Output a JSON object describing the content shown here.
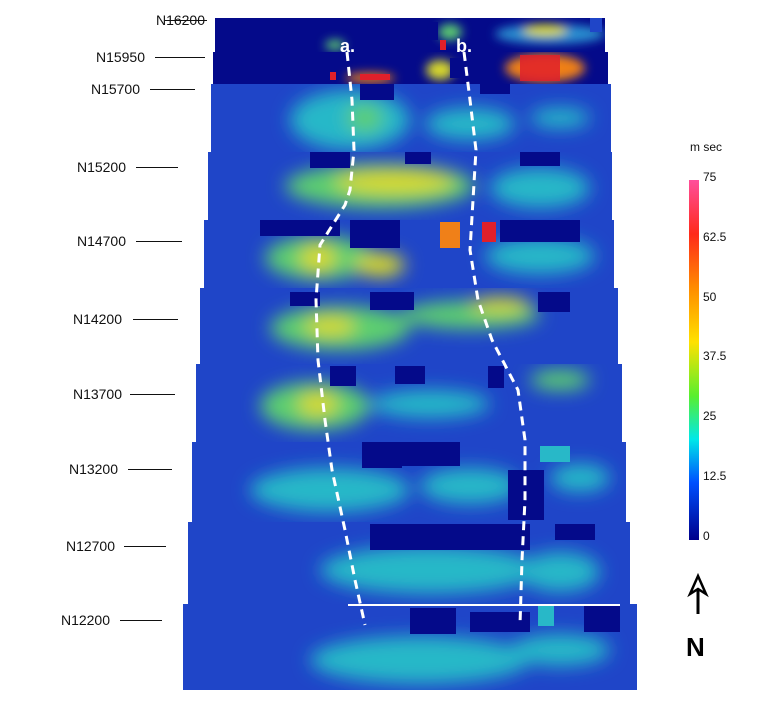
{
  "sections": [
    {
      "northing": "N16200"
    },
    {
      "northing": "N15950"
    },
    {
      "northing": "N15700"
    },
    {
      "northing": "N15200"
    },
    {
      "northing": "N14700"
    },
    {
      "northing": "N14200"
    },
    {
      "northing": "N13700"
    },
    {
      "northing": "N13200"
    },
    {
      "northing": "N12700"
    },
    {
      "northing": "N12200"
    }
  ],
  "traces": [
    {
      "label": "a."
    },
    {
      "label": "b."
    }
  ],
  "colorbar": {
    "unit": "m sec",
    "ticks": [
      "75",
      "62.5",
      "50",
      "37.5",
      "25",
      "12.5",
      "0"
    ],
    "min": 0,
    "max": 75,
    "colors": [
      "#ff4f9b",
      "#ff2a1a",
      "#ff8c00",
      "#ffe100",
      "#58ef2e",
      "#00e8e8",
      "#0050ff",
      "#00008b"
    ]
  },
  "north_arrow": {
    "label": "N"
  },
  "palette": {
    "background_low": "#040a8a",
    "blue_mid": "#1f45c8",
    "cyan": "#28b8c8",
    "green": "#5dcf70",
    "yellow": "#d8d82a",
    "orange": "#f08018",
    "red": "#e0202a",
    "trace_line": "#ffffff"
  }
}
